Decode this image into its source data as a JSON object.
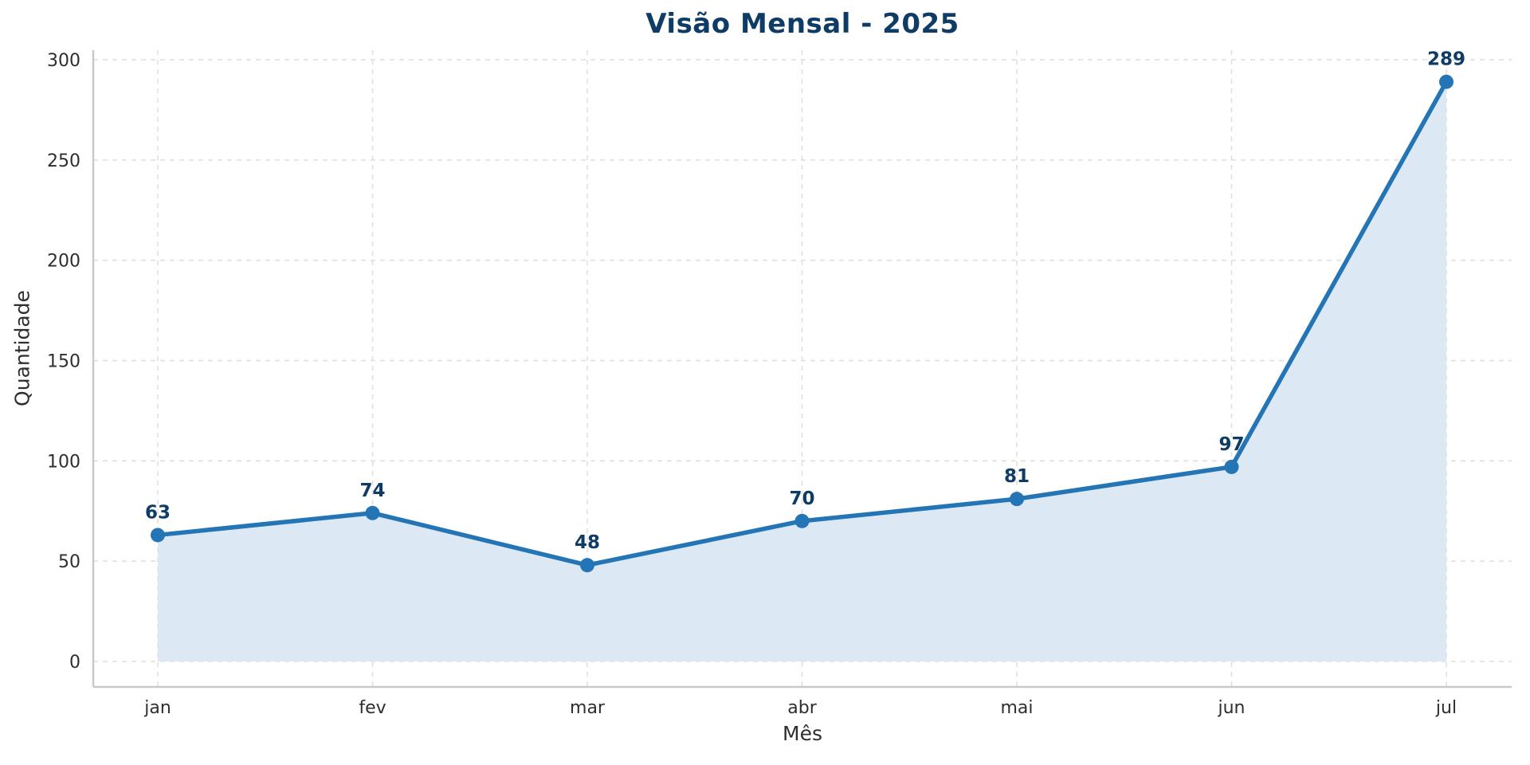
{
  "chart_data": {
    "type": "area",
    "title": "Visão Mensal - 2025",
    "xlabel": "Mês",
    "ylabel": "Quantidade",
    "categories": [
      "jan",
      "fev",
      "mar",
      "abr",
      "mai",
      "jun",
      "jul"
    ],
    "series": [
      {
        "name": "Quantidade",
        "values": [
          63,
          74,
          48,
          70,
          81,
          97,
          289
        ]
      }
    ],
    "data_labels": [
      "63",
      "74",
      "48",
      "70",
      "81",
      "97",
      "289"
    ],
    "yticks": [
      0,
      50,
      100,
      150,
      200,
      250,
      300
    ],
    "ylim": [
      0,
      300
    ],
    "grid": "dashed both axes",
    "legend": "none",
    "colors": {
      "line": "#2475b5",
      "marker": "#2475b5",
      "fill": "#dce8f4",
      "title": "#0e3c66",
      "data_label": "#0e3c66",
      "tick_label": "#2e2e2e",
      "grid": "#dedede",
      "spine": "#c9c9c9",
      "background": "#ffffff"
    }
  }
}
